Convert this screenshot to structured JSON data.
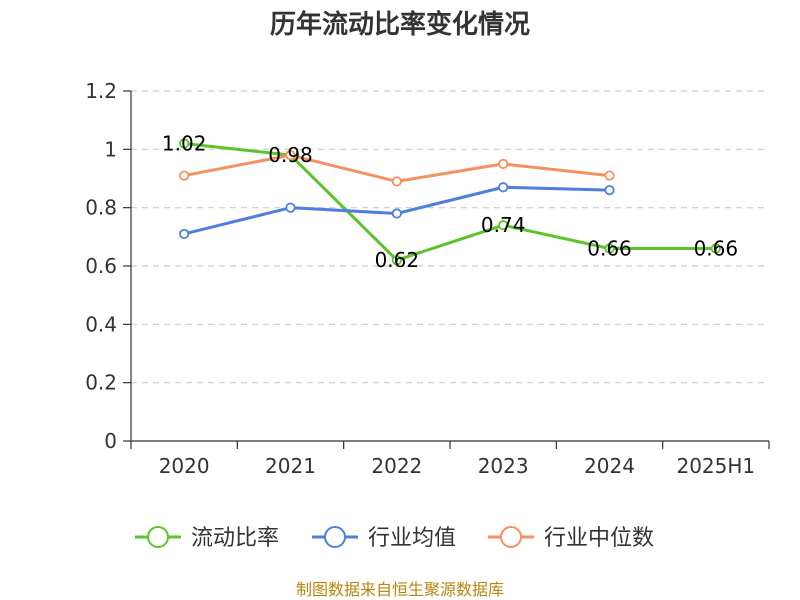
{
  "chart_data": {
    "type": "line",
    "title": "历年流动比率变化情况",
    "categories": [
      "2020",
      "2021",
      "2022",
      "2023",
      "2024",
      "2025H1"
    ],
    "ylim": [
      0,
      1.2
    ],
    "yticks": [
      "0",
      "0.2",
      "0.4",
      "0.6",
      "0.8",
      "1",
      "1.2"
    ],
    "grid": true,
    "legend_position": "bottom",
    "series": [
      {
        "name": "流动比率",
        "color": "#5bc429",
        "values": [
          1.02,
          0.98,
          0.62,
          0.74,
          0.66,
          0.66
        ],
        "labels": [
          "1.02",
          "0.98",
          "0.62",
          "0.74",
          "0.66",
          "0.66"
        ]
      },
      {
        "name": "行业均值",
        "color": "#4e7fdc",
        "values": [
          0.71,
          0.8,
          0.78,
          0.87,
          0.86,
          null
        ]
      },
      {
        "name": "行业中位数",
        "color": "#f4915f",
        "values": [
          0.91,
          0.98,
          0.89,
          0.95,
          0.91,
          null
        ]
      }
    ],
    "source": "制图数据来自恒生聚源数据库"
  }
}
